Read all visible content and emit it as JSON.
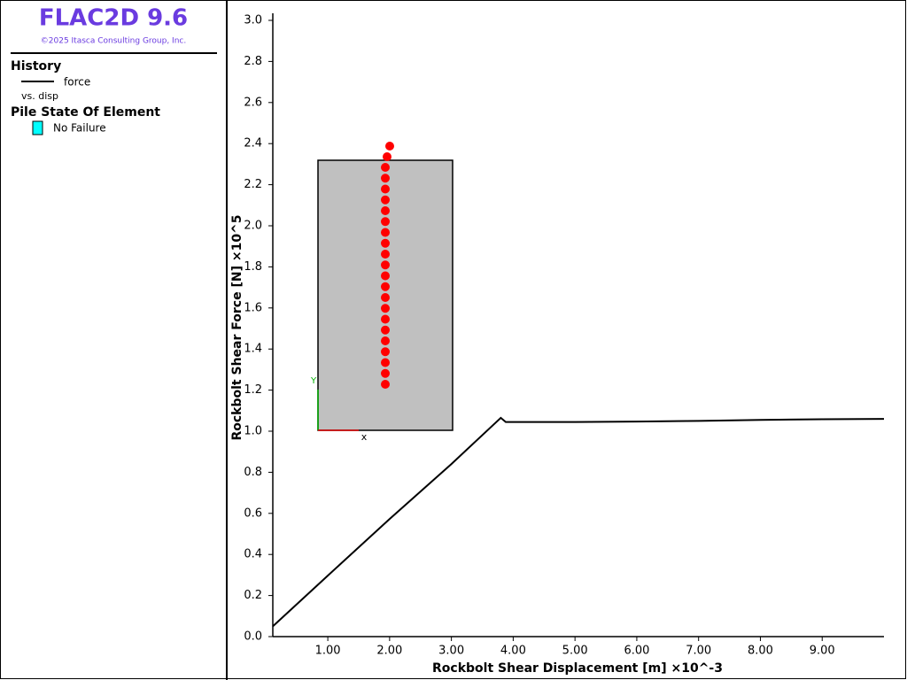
{
  "header": {
    "title": "FLAC2D 9.6",
    "copyright": "©2025 Itasca Consulting Group, Inc."
  },
  "legend": {
    "history_title": "History",
    "history_note": "vs. disp",
    "pile_title": "Pile State Of Element",
    "pile_items": [
      {
        "label": "No Failure",
        "color": "#00ffff"
      }
    ]
  },
  "model_view": {
    "x_axis": "x",
    "y_axis": "Y"
  },
  "chart_data": {
    "type": "line",
    "x_label": "Rockbolt Shear Displacement [m] ×10^-3",
    "y_label": "Rockbolt Shear Force [N] ×10^5",
    "x": [
      0.11,
      1.0,
      2.0,
      3.0,
      3.8,
      3.88,
      5.0,
      6.0,
      7.0,
      8.0,
      9.0,
      10.0
    ],
    "series": [
      {
        "name": "force",
        "color": "#000000",
        "values": [
          0.05,
          0.297,
          0.573,
          0.84,
          1.065,
          1.045,
          1.045,
          1.047,
          1.05,
          1.055,
          1.058,
          1.06
        ]
      }
    ],
    "xlim": [
      0.11,
      10.0
    ],
    "ylim": [
      0,
      3.0
    ],
    "xticks": [
      {
        "value": 1,
        "label": "1.00"
      },
      {
        "value": 2,
        "label": "2.00"
      },
      {
        "value": 3,
        "label": "3.00"
      },
      {
        "value": 4,
        "label": "4.00"
      },
      {
        "value": 5,
        "label": "5.00"
      },
      {
        "value": 6,
        "label": "6.00"
      },
      {
        "value": 7,
        "label": "7.00"
      },
      {
        "value": 8,
        "label": "8.00"
      },
      {
        "value": 9,
        "label": "9.00"
      }
    ],
    "yticks": [
      {
        "value": 0,
        "label": "0.0"
      },
      0.2,
      0.4,
      0.6,
      0.8,
      {
        "value": 1,
        "label": "1.0"
      },
      1.2,
      1.4,
      1.6,
      1.8,
      {
        "value": 2,
        "label": "2.0"
      },
      2.2,
      2.4,
      2.6,
      2.8,
      {
        "value": 3,
        "label": "3.0"
      }
    ]
  }
}
